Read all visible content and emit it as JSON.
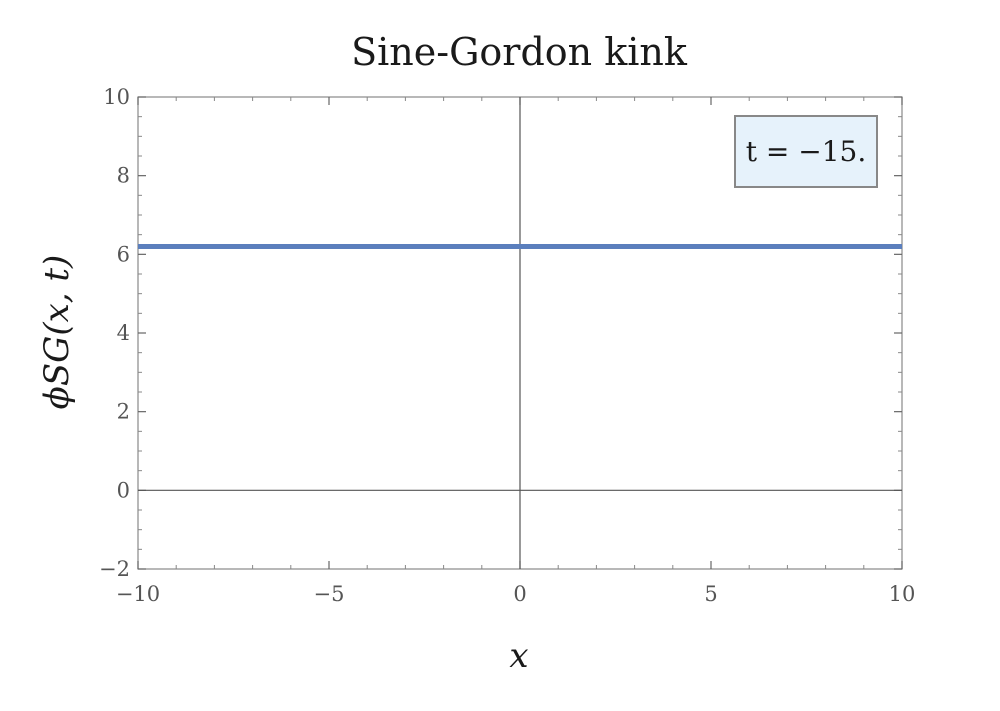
{
  "chart_data": {
    "type": "line",
    "title": "Sine-Gordon kink",
    "xlabel": "x",
    "ylabel": "ϕSG(x, t)",
    "xlim": [
      -10,
      10
    ],
    "ylim": [
      -2,
      10
    ],
    "x_ticks": [
      -10,
      -5,
      0,
      5,
      10
    ],
    "x_tick_labels": [
      "−10",
      "−5",
      "0",
      "5",
      "10"
    ],
    "y_ticks": [
      -2,
      0,
      2,
      4,
      6,
      8,
      10
    ],
    "y_tick_labels": [
      "−2",
      "0",
      "2",
      "4",
      "6",
      "8",
      "10"
    ],
    "annotation": "t = −15.",
    "grid": false,
    "series": [
      {
        "color": "#5b7fbd",
        "x": [
          -10,
          -5,
          0,
          5,
          10
        ],
        "y": [
          6.2,
          6.2,
          6.2,
          6.2,
          6.2
        ]
      }
    ],
    "colors": {
      "line": "#5b7fbd",
      "legend_fill": "#e6f2fb",
      "legend_border": "#888888",
      "axis": "#555555",
      "frame": "#888888"
    }
  }
}
